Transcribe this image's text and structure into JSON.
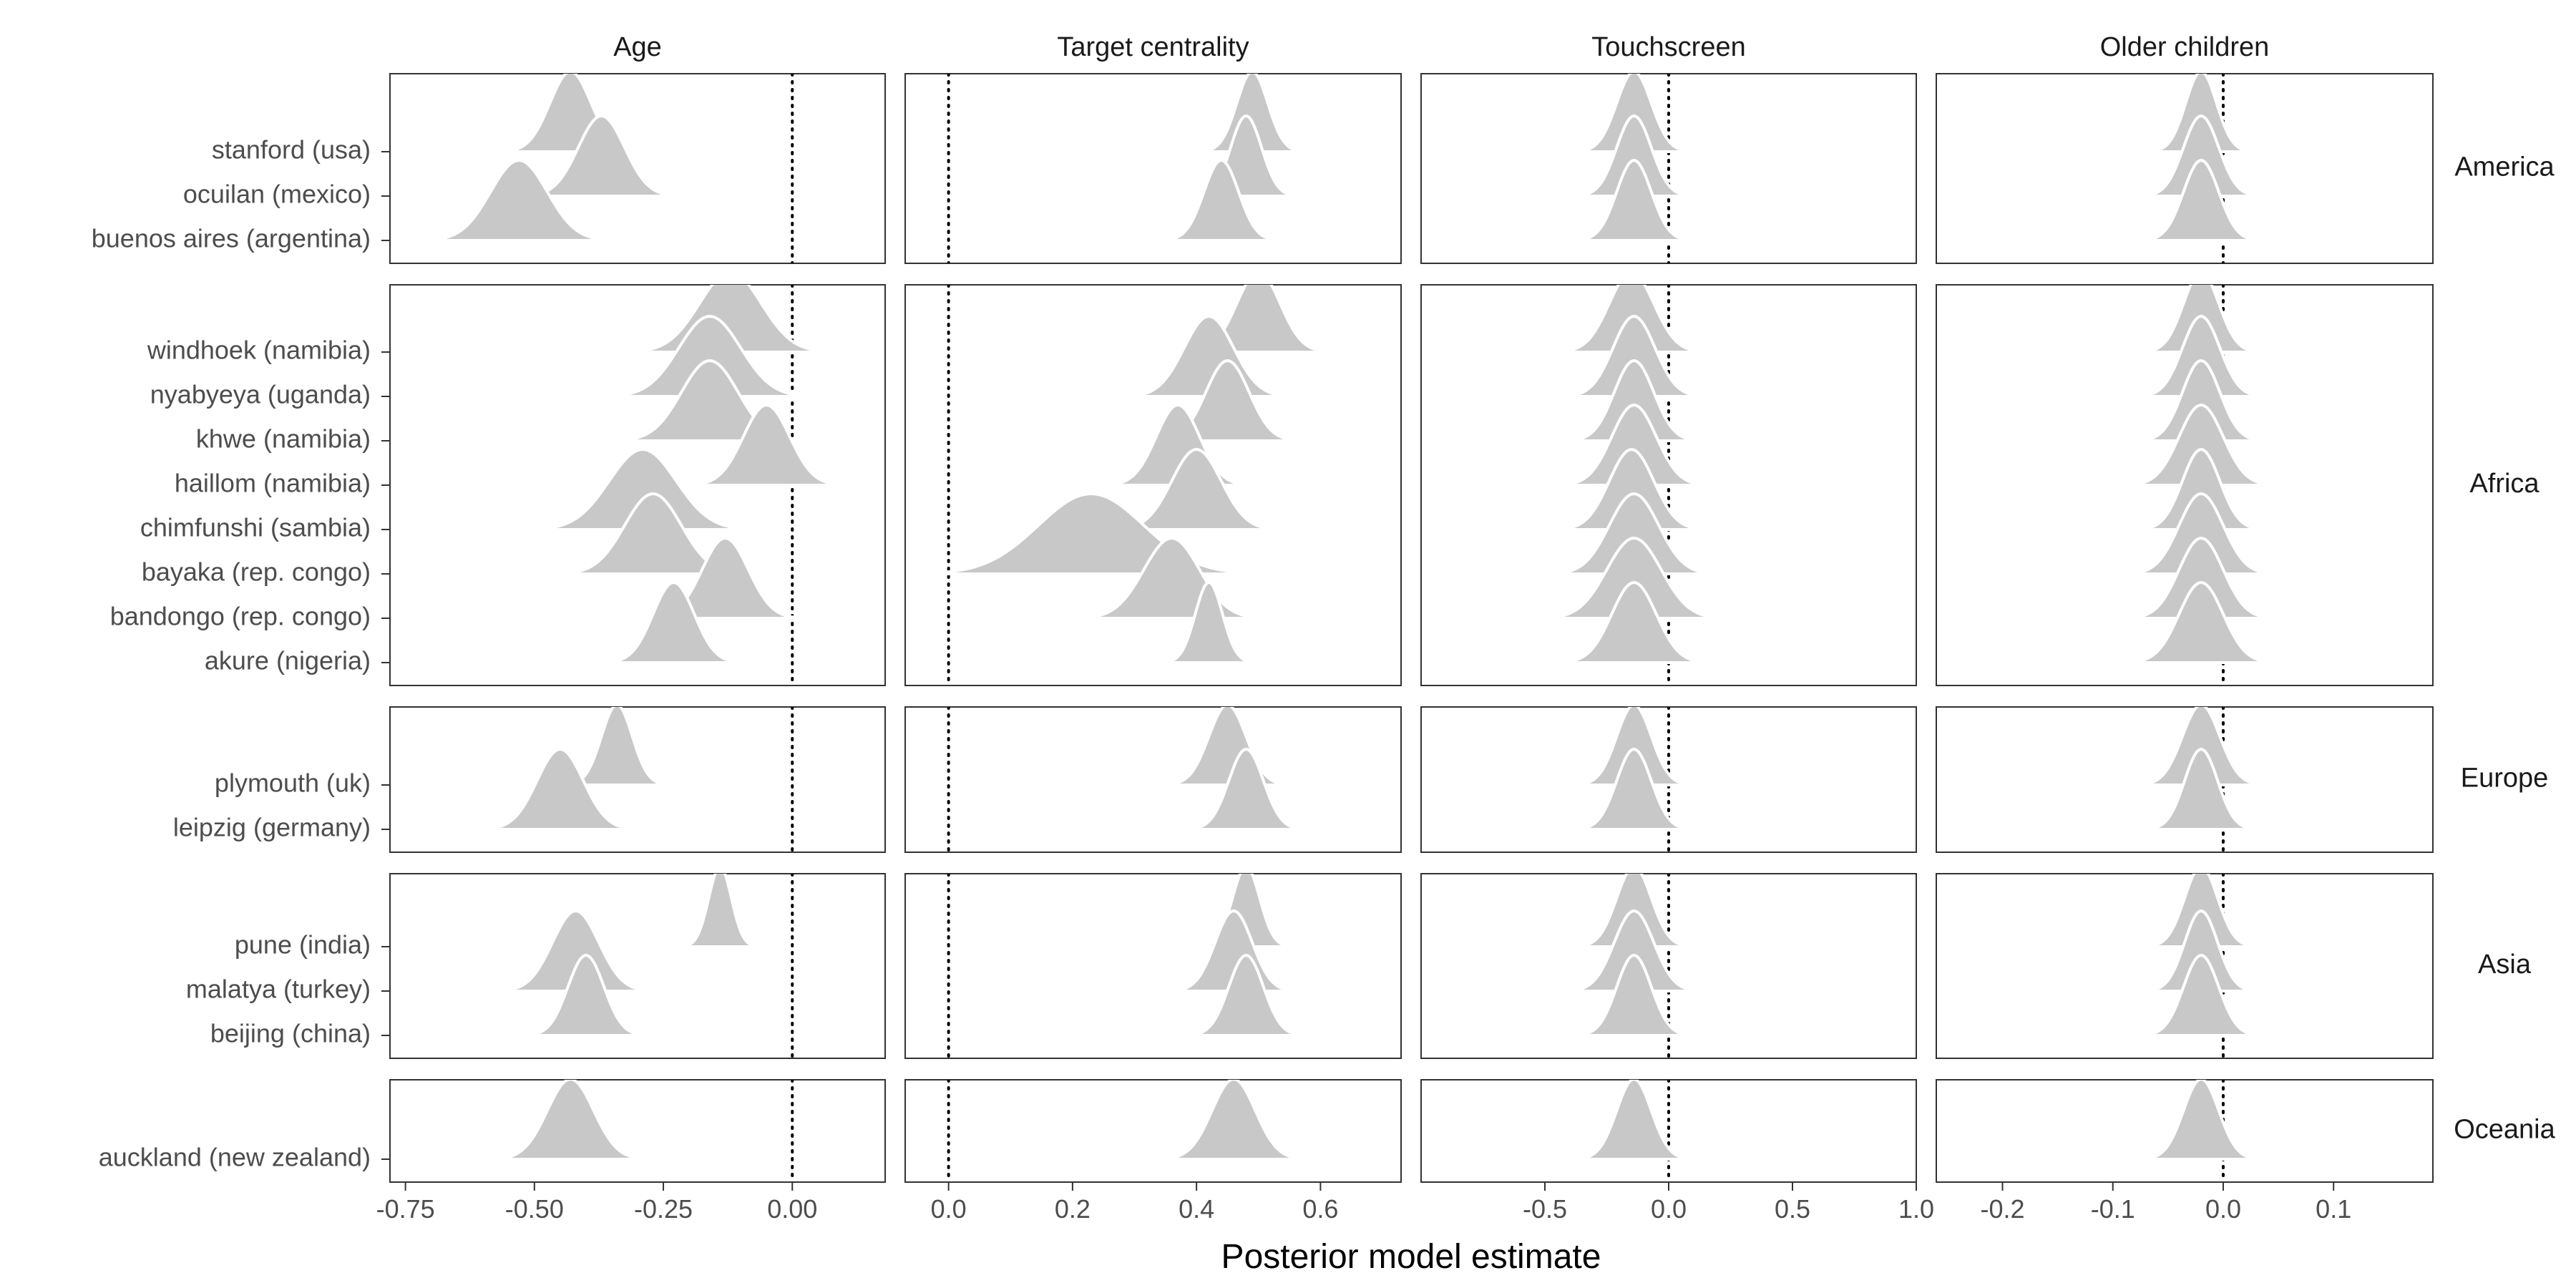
{
  "chart_data": {
    "type": "ridgeline",
    "xlabel": "Posterior model estimate",
    "ylabel": "",
    "grid": false,
    "facet_columns": [
      {
        "name": "Age",
        "xlim": [
          -0.78,
          0.18
        ],
        "ticks": [
          -0.75,
          -0.5,
          -0.25,
          0.0
        ],
        "tick_labels": [
          "-0.75",
          "-0.50",
          "-0.25",
          "0.00"
        ]
      },
      {
        "name": "Target centrality",
        "xlim": [
          -0.07,
          0.73
        ],
        "ticks": [
          0.0,
          0.2,
          0.4,
          0.6
        ],
        "tick_labels": [
          "0.0",
          "0.2",
          "0.4",
          "0.6"
        ]
      },
      {
        "name": "Touchscreen",
        "xlim": [
          -1.0,
          1.0
        ],
        "ticks": [
          -0.5,
          0.0,
          0.5,
          1.0
        ],
        "tick_labels": [
          "-0.5",
          "0.0",
          "0.5",
          "1.0"
        ]
      },
      {
        "name": "Older children",
        "xlim": [
          -0.26,
          0.19
        ],
        "ticks": [
          -0.2,
          -0.1,
          0.0,
          0.1
        ],
        "tick_labels": [
          "-0.2",
          "-0.1",
          "0.0",
          "0.1"
        ]
      }
    ],
    "facet_rows": [
      {
        "name": "America",
        "sites": [
          "stanford (usa)",
          "ocuilan (mexico)",
          "buenos aires (argentina)"
        ]
      },
      {
        "name": "Africa",
        "sites": [
          "windhoek (namibia)",
          "nyabyeya (uganda)",
          "khwe (namibia)",
          "haillom (namibia)",
          "chimfunshi (sambia)",
          "bayaka (rep. congo)",
          "bandongo (rep. congo)",
          "akure (nigeria)"
        ]
      },
      {
        "name": "Europe",
        "sites": [
          "plymouth (uk)",
          "leipzig (germany)"
        ]
      },
      {
        "name": "Asia",
        "sites": [
          "pune (india)",
          "malatya (turkey)",
          "beijing (china)"
        ]
      },
      {
        "name": "Oceania",
        "sites": [
          "auckland (new zealand)"
        ]
      }
    ],
    "posterior_means": {
      "Age": [
        -0.43,
        -0.37,
        -0.53,
        -0.12,
        -0.16,
        -0.16,
        -0.05,
        -0.29,
        -0.27,
        -0.13,
        -0.23,
        -0.34,
        -0.45,
        -0.14,
        -0.42,
        -0.4,
        -0.43
      ],
      "Target centrality": [
        0.49,
        0.48,
        0.44,
        0.5,
        0.42,
        0.45,
        0.37,
        0.4,
        0.23,
        0.36,
        0.42,
        0.45,
        0.48,
        0.48,
        0.46,
        0.48,
        0.46
      ],
      "Touchscreen": [
        -0.14,
        -0.14,
        -0.14,
        -0.15,
        -0.14,
        -0.14,
        -0.14,
        -0.15,
        -0.14,
        -0.14,
        -0.14,
        -0.14,
        -0.14,
        -0.14,
        -0.14,
        -0.14,
        -0.14
      ],
      "Older children": [
        -0.02,
        -0.02,
        -0.02,
        -0.02,
        -0.02,
        -0.02,
        -0.02,
        -0.02,
        -0.02,
        -0.02,
        -0.02,
        -0.02,
        -0.02,
        -0.02,
        -0.02,
        -0.02,
        -0.02
      ]
    },
    "posterior_sd": {
      "Age": [
        0.04,
        0.045,
        0.055,
        0.06,
        0.06,
        0.055,
        0.045,
        0.065,
        0.055,
        0.045,
        0.04,
        0.03,
        0.045,
        0.022,
        0.045,
        0.035,
        0.045
      ],
      "Target centrality": [
        0.025,
        0.025,
        0.028,
        0.035,
        0.04,
        0.035,
        0.035,
        0.04,
        0.085,
        0.045,
        0.022,
        0.03,
        0.028,
        0.022,
        0.03,
        0.028,
        0.035
      ],
      "Touchscreen": [
        0.07,
        0.07,
        0.07,
        0.09,
        0.085,
        0.08,
        0.09,
        0.09,
        0.1,
        0.11,
        0.09,
        0.07,
        0.07,
        0.07,
        0.08,
        0.07,
        0.07
      ],
      "Older children": [
        0.014,
        0.016,
        0.016,
        0.016,
        0.017,
        0.017,
        0.02,
        0.017,
        0.02,
        0.02,
        0.02,
        0.017,
        0.015,
        0.015,
        0.015,
        0.016,
        0.016
      ]
    },
    "reference_line": 0
  }
}
